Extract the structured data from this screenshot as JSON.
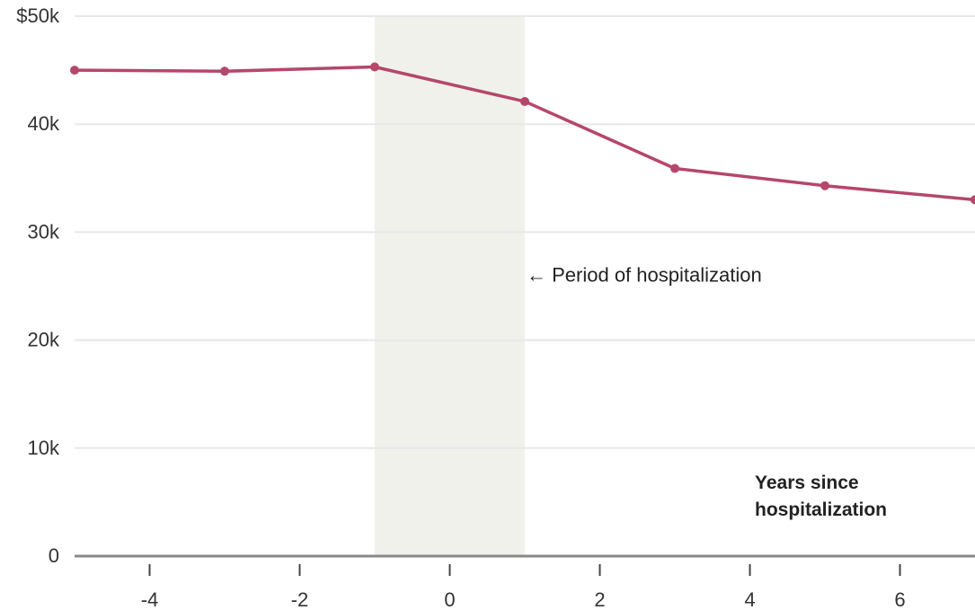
{
  "chart_data": {
    "type": "line",
    "x": [
      -5,
      -3,
      -1,
      1,
      3,
      5,
      7
    ],
    "series": [
      {
        "values": [
          45000,
          44900,
          45300,
          42100,
          35900,
          34300,
          33000
        ],
        "color": "#b5476b"
      }
    ],
    "xlabel_lines": [
      "Years since",
      "hospitalization"
    ],
    "ylabel": "",
    "xlim": [
      -5,
      7
    ],
    "ylim": [
      0,
      50000
    ],
    "xticks": [
      {
        "value": -4,
        "label": "-4"
      },
      {
        "value": -2,
        "label": "-2"
      },
      {
        "value": 0,
        "label": "0"
      },
      {
        "value": 2,
        "label": "2"
      },
      {
        "value": 4,
        "label": "4"
      },
      {
        "value": 6,
        "label": "6"
      }
    ],
    "yticks": [
      {
        "value": 0,
        "label": "0"
      },
      {
        "value": 10000,
        "label": "10k"
      },
      {
        "value": 20000,
        "label": "20k"
      },
      {
        "value": 30000,
        "label": "30k"
      },
      {
        "value": 40000,
        "label": "40k"
      },
      {
        "value": 50000,
        "label": "$50k"
      }
    ],
    "grid": true,
    "shaded_region": {
      "x_start": -1,
      "x_end": 1,
      "color": "#f1f1ec"
    },
    "annotation": {
      "text": "← Period of hospitalization",
      "x": 1,
      "y": 26000
    },
    "axis_color": "#888888",
    "grid_color": "#e8e8e8"
  }
}
